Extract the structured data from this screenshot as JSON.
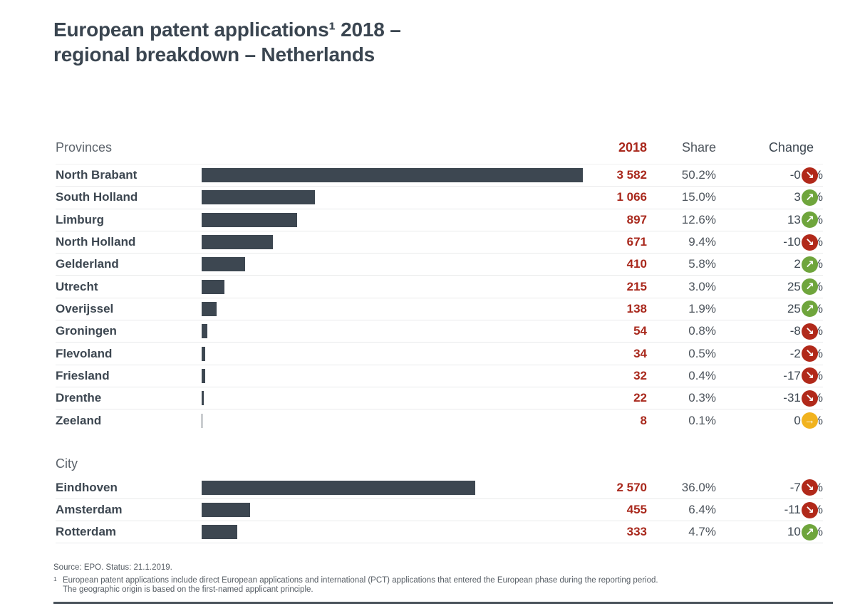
{
  "title": {
    "line1": "European patent applications¹ 2018 –",
    "line2": "regional breakdown – Netherlands"
  },
  "table": {
    "col_year": "2018",
    "col_share": "Share",
    "col_change": "Change",
    "pct_sign": "%",
    "bar_max": 3582
  },
  "icons": {
    "up": "↗",
    "down": "↘",
    "flat": "→"
  },
  "colors": {
    "accent_red": "#a9291d",
    "bar": "#3d4751",
    "trend_up_green": "#6fa53c",
    "trend_down_red": "#b1291a",
    "trend_flat_amber": "#f1b31f",
    "title_text": "#3a4550"
  },
  "chart_data": [
    {
      "type": "bar",
      "group": "Provinces",
      "title": "European patent applications 2018 – regional breakdown – Netherlands",
      "xlim": [
        0,
        3582
      ],
      "categories": [
        "North Brabant",
        "South Holland",
        "Limburg",
        "North Holland",
        "Gelderland",
        "Utrecht",
        "Overijssel",
        "Groningen",
        "Flevoland",
        "Friesland",
        "Drenthe",
        "Zeeland"
      ],
      "values": [
        3582,
        1066,
        897,
        671,
        410,
        215,
        138,
        54,
        34,
        32,
        22,
        8
      ],
      "value_labels": [
        "3 582",
        "1 066",
        "897",
        "671",
        "410",
        "215",
        "138",
        "54",
        "34",
        "32",
        "22",
        "8"
      ],
      "shares": [
        "50.2%",
        "15.0%",
        "12.6%",
        "9.4%",
        "5.8%",
        "3.0%",
        "1.9%",
        "0.8%",
        "0.5%",
        "0.4%",
        "0.3%",
        "0.1%"
      ],
      "changes": [
        "-0",
        "3",
        "13",
        "-10",
        "2",
        "25",
        "25",
        "-8",
        "-2",
        "-17",
        "-31",
        "0"
      ],
      "trends": [
        "down",
        "up",
        "up",
        "down",
        "up",
        "up",
        "up",
        "down",
        "down",
        "down",
        "down",
        "flat"
      ]
    },
    {
      "type": "bar",
      "group": "City",
      "xlim": [
        0,
        3582
      ],
      "categories": [
        "Eindhoven",
        "Amsterdam",
        "Rotterdam"
      ],
      "values": [
        2570,
        455,
        333
      ],
      "value_labels": [
        "2 570",
        "455",
        "333"
      ],
      "shares": [
        "36.0%",
        "6.4%",
        "4.7%"
      ],
      "changes": [
        "-7",
        "-11",
        "10"
      ],
      "trends": [
        "down",
        "down",
        "up"
      ]
    }
  ],
  "footer": {
    "source": "Source: EPO. Status: 21.1.2019.",
    "footnote_mark": "1",
    "footnote_line1": "European patent applications include direct European applications and international (PCT) applications that entered the European phase during the reporting period.",
    "footnote_line2": "The geographic origin is based on the first-named applicant principle."
  }
}
